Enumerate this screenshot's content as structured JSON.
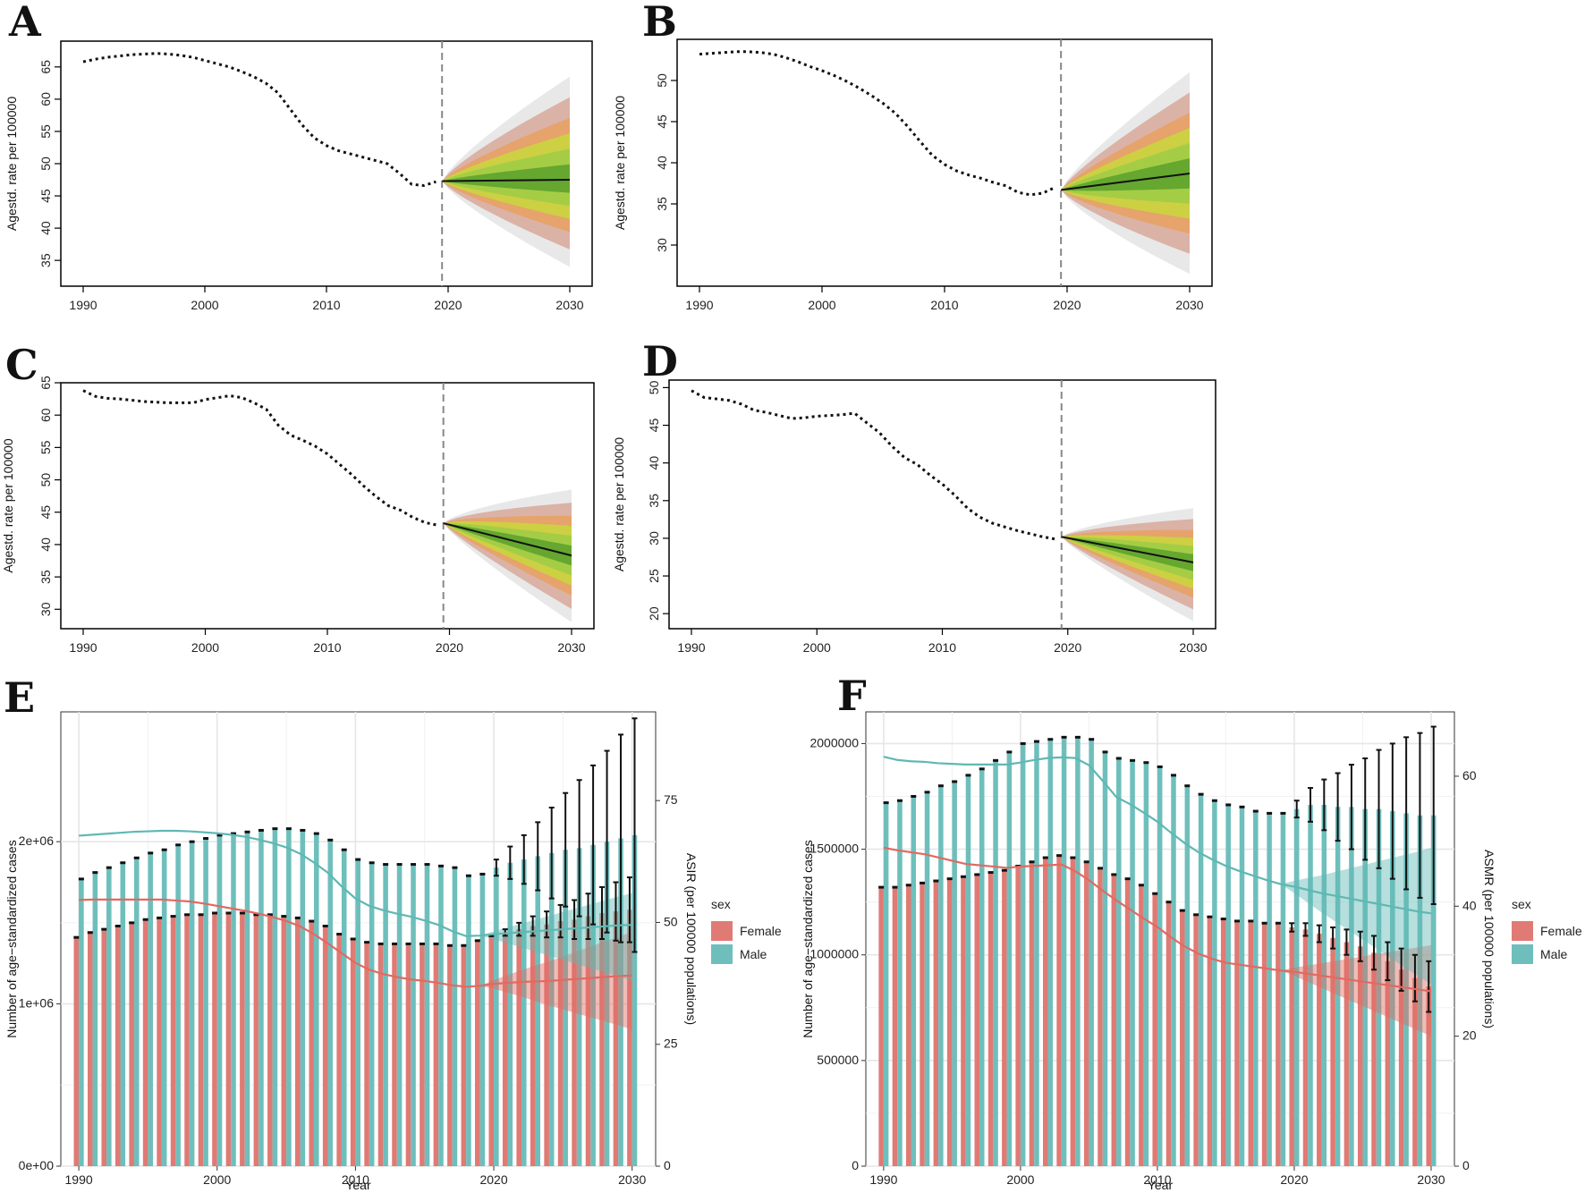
{
  "figure": {
    "panels": [
      "A",
      "B",
      "C",
      "D",
      "E",
      "F"
    ]
  },
  "colors": {
    "female": "#e07a74",
    "male": "#6ebfbc",
    "female_line": "#e06a62",
    "male_line": "#5fb8b3",
    "fan_inner": "#5aa02c",
    "fan_mid": "#c8d83c",
    "fan_orange": "#e8a060",
    "fan_outer": "#d8a89a",
    "fan_grey": "#e4e4e4"
  },
  "chart_data": [
    {
      "id": "A",
      "type": "line",
      "letter": "A",
      "ylabel": "Agestd. rate per 100000",
      "xlim": [
        1990,
        2030
      ],
      "ylim": [
        31,
        69
      ],
      "xticks": [
        "1990",
        "2000",
        "2010",
        "2020",
        "2030"
      ],
      "yticks": [
        "35",
        "40",
        "45",
        "50",
        "55",
        "60",
        "65"
      ],
      "history_x": [
        1990,
        1991,
        1992,
        1993,
        1994,
        1995,
        1996,
        1997,
        1998,
        1999,
        2000,
        2001,
        2002,
        2003,
        2004,
        2005,
        2006,
        2007,
        2008,
        2009,
        2010,
        2011,
        2012,
        2013,
        2014,
        2015,
        2016,
        2017,
        2018,
        2019
      ],
      "history_y": [
        65.8,
        66.2,
        66.5,
        66.7,
        66.9,
        67.0,
        67.1,
        67.0,
        66.8,
        66.5,
        66.0,
        65.5,
        65.0,
        64.3,
        63.5,
        62.5,
        61.0,
        58.5,
        56.0,
        54.0,
        52.8,
        52.0,
        51.5,
        51.0,
        50.5,
        50.0,
        48.5,
        46.8,
        46.6,
        47.2
      ],
      "forecast_x": [
        2019.5,
        2030
      ],
      "forecast_y": [
        47.3,
        47.5
      ],
      "band_outer_end": [
        34.0,
        63.5
      ],
      "divider_x": 2019.5
    },
    {
      "id": "B",
      "type": "line",
      "letter": "B",
      "ylabel": "Agestd. rate per 100000",
      "xlim": [
        1990,
        2030
      ],
      "ylim": [
        25,
        55
      ],
      "xticks": [
        "1990",
        "2000",
        "2010",
        "2020",
        "2030"
      ],
      "yticks": [
        "30",
        "35",
        "40",
        "45",
        "50"
      ],
      "history_x": [
        1990,
        1991,
        1992,
        1993,
        1994,
        1995,
        1996,
        1997,
        1998,
        1999,
        2000,
        2001,
        2002,
        2003,
        2004,
        2005,
        2006,
        2007,
        2008,
        2009,
        2010,
        2011,
        2012,
        2013,
        2014,
        2015,
        2016,
        2017,
        2018,
        2019
      ],
      "history_y": [
        53.2,
        53.3,
        53.4,
        53.5,
        53.5,
        53.4,
        53.2,
        52.8,
        52.3,
        51.7,
        51.2,
        50.6,
        49.9,
        49.1,
        48.2,
        47.2,
        46.0,
        44.4,
        42.6,
        40.9,
        39.8,
        39.0,
        38.5,
        38.1,
        37.6,
        37.2,
        36.4,
        36.1,
        36.3,
        37.0
      ],
      "forecast_x": [
        2019.5,
        2030
      ],
      "forecast_y": [
        36.7,
        38.7
      ],
      "band_outer_end": [
        26.5,
        51.0
      ],
      "divider_x": 2019.5
    },
    {
      "id": "C",
      "type": "line",
      "letter": "C",
      "ylabel": "Agestd. rate per 100000",
      "xlim": [
        1990,
        2030
      ],
      "ylim": [
        27,
        65
      ],
      "xticks": [
        "1990",
        "2000",
        "2010",
        "2020",
        "2030"
      ],
      "yticks": [
        "30",
        "35",
        "40",
        "45",
        "50",
        "55",
        "60",
        "65"
      ],
      "history_x": [
        1990,
        1991,
        1992,
        1993,
        1994,
        1995,
        1996,
        1997,
        1998,
        1999,
        2000,
        2001,
        2002,
        2003,
        2004,
        2005,
        2006,
        2007,
        2008,
        2009,
        2010,
        2011,
        2012,
        2013,
        2014,
        2015,
        2016,
        2017,
        2018,
        2019
      ],
      "history_y": [
        63.8,
        62.9,
        62.6,
        62.5,
        62.3,
        62.1,
        62.0,
        61.9,
        61.9,
        61.9,
        62.4,
        62.7,
        63.0,
        62.7,
        61.9,
        60.9,
        58.4,
        56.9,
        56.1,
        55.2,
        54.0,
        52.4,
        50.8,
        49.0,
        47.4,
        46.0,
        45.3,
        44.2,
        43.4,
        43.0
      ],
      "forecast_x": [
        2019.5,
        2030
      ],
      "forecast_y": [
        43.3,
        38.3
      ],
      "band_outer_end": [
        28.0,
        48.5
      ],
      "divider_x": 2019.5
    },
    {
      "id": "D",
      "type": "line",
      "letter": "D",
      "ylabel": "Agestd. rate per 100000",
      "xlim": [
        1990,
        2030
      ],
      "ylim": [
        18,
        51
      ],
      "xticks": [
        "1990",
        "2000",
        "2010",
        "2020",
        "2030"
      ],
      "yticks": [
        "20",
        "25",
        "30",
        "35",
        "40",
        "45",
        "50"
      ],
      "history_x": [
        1990,
        1991,
        1992,
        1993,
        1994,
        1995,
        1996,
        1997,
        1998,
        1999,
        2000,
        2001,
        2002,
        2003,
        2004,
        2005,
        2006,
        2007,
        2008,
        2009,
        2010,
        2011,
        2012,
        2013,
        2014,
        2015,
        2016,
        2017,
        2018,
        2019
      ],
      "history_y": [
        49.6,
        48.7,
        48.5,
        48.3,
        47.8,
        47.0,
        46.7,
        46.3,
        45.9,
        46.0,
        46.2,
        46.3,
        46.4,
        46.6,
        45.3,
        44.0,
        42.2,
        40.7,
        39.8,
        38.4,
        37.2,
        35.7,
        34.0,
        32.8,
        32.0,
        31.5,
        31.0,
        30.6,
        30.2,
        29.9
      ],
      "forecast_x": [
        2019.5,
        2030
      ],
      "forecast_y": [
        30.2,
        26.8
      ],
      "band_outer_end": [
        19.0,
        34.0
      ],
      "divider_x": 2019.5
    },
    {
      "id": "E",
      "type": "bar",
      "letter": "E",
      "xlabel": "Year",
      "ylabel": "Number of age−standardized cases",
      "y2label": "ASIR (per 100000 populations)",
      "xlim": [
        1988.7,
        2031.7
      ],
      "ylim": [
        0,
        2800000
      ],
      "y2lim": [
        0,
        93.2
      ],
      "xticks": [
        "1990",
        "2000",
        "2010",
        "2020",
        "2030"
      ],
      "yticks": [
        "0e+00",
        "1e+06",
        "2e+06"
      ],
      "yticks_values": [
        0,
        1000000,
        2000000
      ],
      "y2ticks": [
        "0",
        "25",
        "50",
        "75"
      ],
      "y2ticks_values": [
        0,
        25,
        50,
        75
      ],
      "legend_title": "sex",
      "legend": [
        "Female",
        "Male"
      ],
      "years": [
        1990,
        1991,
        1992,
        1993,
        1994,
        1995,
        1996,
        1997,
        1998,
        1999,
        2000,
        2001,
        2002,
        2003,
        2004,
        2005,
        2006,
        2007,
        2008,
        2009,
        2010,
        2011,
        2012,
        2013,
        2014,
        2015,
        2016,
        2017,
        2018,
        2019,
        2020,
        2021,
        2022,
        2023,
        2024,
        2025,
        2026,
        2027,
        2028,
        2029,
        2030
      ],
      "female_cases": [
        1410000,
        1440000,
        1460000,
        1480000,
        1500000,
        1520000,
        1530000,
        1540000,
        1550000,
        1550000,
        1560000,
        1560000,
        1560000,
        1550000,
        1550000,
        1540000,
        1530000,
        1510000,
        1480000,
        1430000,
        1400000,
        1380000,
        1370000,
        1370000,
        1370000,
        1370000,
        1370000,
        1360000,
        1360000,
        1390000,
        1420000,
        1440000,
        1460000,
        1480000,
        1490000,
        1510000,
        1520000,
        1540000,
        1560000,
        1570000,
        1580000
      ],
      "male_cases": [
        1770000,
        1810000,
        1840000,
        1870000,
        1900000,
        1930000,
        1950000,
        1980000,
        2000000,
        2020000,
        2040000,
        2050000,
        2060000,
        2070000,
        2080000,
        2080000,
        2070000,
        2050000,
        2010000,
        1950000,
        1890000,
        1870000,
        1860000,
        1860000,
        1860000,
        1860000,
        1850000,
        1840000,
        1790000,
        1800000,
        1840000,
        1870000,
        1890000,
        1910000,
        1930000,
        1950000,
        1960000,
        1980000,
        2000000,
        2020000,
        2040000
      ],
      "female_err": [
        0,
        0,
        0,
        0,
        0,
        0,
        0,
        0,
        0,
        0,
        0,
        0,
        0,
        0,
        0,
        0,
        0,
        0,
        0,
        0,
        0,
        0,
        0,
        0,
        0,
        0,
        0,
        0,
        0,
        0,
        0,
        20000,
        40000,
        60000,
        80000,
        100000,
        120000,
        140000,
        160000,
        180000,
        200000
      ],
      "male_err": [
        0,
        0,
        0,
        0,
        0,
        0,
        0,
        0,
        0,
        0,
        0,
        0,
        0,
        0,
        0,
        0,
        0,
        0,
        0,
        0,
        0,
        0,
        0,
        0,
        0,
        0,
        0,
        0,
        0,
        0,
        50000,
        100000,
        150000,
        210000,
        280000,
        350000,
        420000,
        490000,
        560000,
        640000,
        720000
      ],
      "male_rate": [
        67.8,
        68.0,
        68.2,
        68.4,
        68.6,
        68.7,
        68.8,
        68.8,
        68.7,
        68.5,
        68.3,
        68.0,
        67.6,
        67.0,
        66.3,
        65.4,
        64.1,
        62.3,
        60.2,
        57.4,
        54.9,
        53.4,
        52.5,
        51.8,
        51.2,
        50.4,
        49.5,
        48.2,
        47.2,
        47.3,
        47.6,
        47.8,
        48.0,
        48.2,
        48.4,
        48.6,
        48.8,
        49.0,
        49.2,
        49.4,
        49.5
      ],
      "female_rate": [
        54.6,
        54.7,
        54.7,
        54.7,
        54.7,
        54.7,
        54.7,
        54.5,
        54.3,
        53.9,
        53.4,
        52.9,
        52.4,
        51.8,
        51.1,
        50.3,
        49.2,
        47.6,
        45.7,
        43.7,
        41.7,
        40.3,
        39.4,
        38.8,
        38.3,
        38.0,
        37.6,
        37.1,
        36.8,
        37.0,
        37.4,
        37.6,
        37.8,
        37.9,
        38.0,
        38.2,
        38.4,
        38.6,
        38.8,
        39.0,
        39.1
      ],
      "male_rate_lo_end": 38.0,
      "male_rate_hi_end": 56.0,
      "female_rate_lo_end": 28.0,
      "female_rate_hi_end": 48.0
    },
    {
      "id": "F",
      "type": "bar",
      "letter": "F",
      "xlabel": "Year",
      "ylabel": "Number of age−standardized cases",
      "y2label": "ASMR (per 100000 populations)",
      "xlim": [
        1988.7,
        2031.7
      ],
      "ylim": [
        0,
        2150000
      ],
      "y2lim": [
        0,
        69.9
      ],
      "xticks": [
        "1990",
        "2000",
        "2010",
        "2020",
        "2030"
      ],
      "yticks": [
        "0",
        "500000",
        "1000000",
        "1500000",
        "2000000"
      ],
      "yticks_values": [
        0,
        500000,
        1000000,
        1500000,
        2000000
      ],
      "y2ticks": [
        "0",
        "20",
        "40",
        "60"
      ],
      "y2ticks_values": [
        0,
        20,
        40,
        60
      ],
      "legend_title": "sex",
      "legend": [
        "Female",
        "Male"
      ],
      "years": [
        1990,
        1991,
        1992,
        1993,
        1994,
        1995,
        1996,
        1997,
        1998,
        1999,
        2000,
        2001,
        2002,
        2003,
        2004,
        2005,
        2006,
        2007,
        2008,
        2009,
        2010,
        2011,
        2012,
        2013,
        2014,
        2015,
        2016,
        2017,
        2018,
        2019,
        2020,
        2021,
        2022,
        2023,
        2024,
        2025,
        2026,
        2027,
        2028,
        2029,
        2030
      ],
      "female_cases": [
        1320000,
        1320000,
        1330000,
        1340000,
        1350000,
        1360000,
        1370000,
        1380000,
        1390000,
        1400000,
        1420000,
        1440000,
        1460000,
        1470000,
        1460000,
        1440000,
        1410000,
        1380000,
        1360000,
        1330000,
        1290000,
        1250000,
        1210000,
        1190000,
        1180000,
        1170000,
        1160000,
        1160000,
        1150000,
        1150000,
        1130000,
        1120000,
        1100000,
        1080000,
        1060000,
        1040000,
        1010000,
        970000,
        930000,
        890000,
        850000
      ],
      "male_cases": [
        1720000,
        1730000,
        1750000,
        1770000,
        1800000,
        1820000,
        1850000,
        1880000,
        1920000,
        1960000,
        2000000,
        2010000,
        2020000,
        2030000,
        2030000,
        2020000,
        1960000,
        1930000,
        1920000,
        1910000,
        1890000,
        1850000,
        1800000,
        1760000,
        1730000,
        1710000,
        1700000,
        1680000,
        1670000,
        1670000,
        1690000,
        1710000,
        1710000,
        1700000,
        1700000,
        1690000,
        1690000,
        1680000,
        1670000,
        1660000,
        1660000
      ],
      "female_err": [
        0,
        0,
        0,
        0,
        0,
        0,
        0,
        0,
        0,
        0,
        0,
        0,
        0,
        0,
        0,
        0,
        0,
        0,
        0,
        0,
        0,
        0,
        0,
        0,
        0,
        0,
        0,
        0,
        0,
        0,
        20000,
        30000,
        40000,
        50000,
        60000,
        70000,
        80000,
        90000,
        100000,
        110000,
        120000
      ],
      "male_err": [
        0,
        0,
        0,
        0,
        0,
        0,
        0,
        0,
        0,
        0,
        0,
        0,
        0,
        0,
        0,
        0,
        0,
        0,
        0,
        0,
        0,
        0,
        0,
        0,
        0,
        0,
        0,
        0,
        0,
        0,
        40000,
        80000,
        120000,
        160000,
        200000,
        240000,
        280000,
        320000,
        360000,
        390000,
        420000
      ],
      "male_rate": [
        63.0,
        62.5,
        62.3,
        62.2,
        62.0,
        61.9,
        61.8,
        61.8,
        61.8,
        61.8,
        62.1,
        62.5,
        62.8,
        62.9,
        62.8,
        61.7,
        59.3,
        56.8,
        55.7,
        54.4,
        53.0,
        51.3,
        49.7,
        48.3,
        47.2,
        46.2,
        45.4,
        44.7,
        44.0,
        43.4,
        43.0,
        42.5,
        42.0,
        41.6,
        41.2,
        40.8,
        40.4,
        40.0,
        39.6,
        39.2,
        38.9
      ],
      "female_rate": [
        49.0,
        48.6,
        48.3,
        48.0,
        47.5,
        47.0,
        46.5,
        46.3,
        46.1,
        45.9,
        46.1,
        46.2,
        46.3,
        46.4,
        45.4,
        44.0,
        42.4,
        40.9,
        39.5,
        38.1,
        36.8,
        35.2,
        33.8,
        32.7,
        31.9,
        31.3,
        31.0,
        30.7,
        30.4,
        30.1,
        29.9,
        29.6,
        29.3,
        29.0,
        28.7,
        28.4,
        28.1,
        27.8,
        27.5,
        27.2,
        26.9
      ],
      "male_rate_lo_end": 28.0,
      "male_rate_hi_end": 49.0,
      "female_rate_lo_end": 20.0,
      "female_rate_hi_end": 34.0
    }
  ]
}
